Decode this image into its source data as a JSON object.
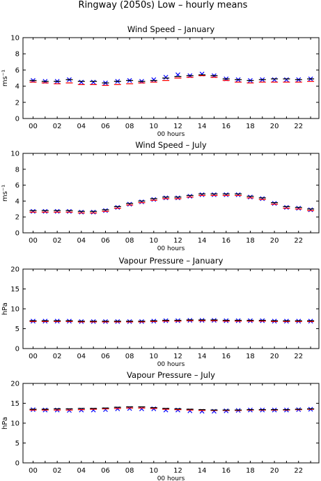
{
  "figure": {
    "title": "Ringway (2050s) Low – hourly means"
  },
  "chart_data": [
    {
      "type": "scatter",
      "title": "Wind Speed – January",
      "xlabel": "00 hours",
      "ylabel": "ms⁻¹",
      "ylim": [
        0,
        10
      ],
      "yticks": [
        0,
        2,
        4,
        6,
        8,
        10
      ],
      "xticks": [
        "00",
        "02",
        "04",
        "06",
        "08",
        "10",
        "12",
        "14",
        "16",
        "18",
        "20",
        "22"
      ],
      "x": [
        0,
        1,
        2,
        3,
        4,
        5,
        6,
        7,
        8,
        9,
        10,
        11,
        12,
        13,
        14,
        15,
        16,
        17,
        18,
        19,
        20,
        21,
        22,
        23
      ],
      "series": [
        {
          "name": "",
          "color": "#0000ff",
          "marker": "x",
          "values": [
            4.7,
            4.6,
            4.6,
            4.8,
            4.5,
            4.5,
            4.4,
            4.6,
            4.7,
            4.6,
            4.8,
            5.1,
            5.4,
            5.3,
            5.5,
            5.3,
            4.9,
            4.8,
            4.7,
            4.8,
            4.8,
            4.8,
            4.8,
            4.9
          ]
        },
        {
          "name": "",
          "color": "#ff0000",
          "marker": "line",
          "values": [
            4.5,
            4.4,
            4.3,
            4.4,
            4.2,
            4.2,
            4.1,
            4.2,
            4.3,
            4.4,
            4.5,
            4.7,
            5.0,
            5.1,
            5.3,
            5.1,
            4.7,
            4.5,
            4.4,
            4.5,
            4.5,
            4.5,
            4.5,
            4.6
          ]
        },
        {
          "name": "",
          "color": "#000000",
          "marker": "line",
          "values": [
            4.7,
            4.6,
            4.6,
            4.8,
            4.6,
            4.6,
            4.4,
            4.6,
            4.7,
            4.6,
            4.7,
            5.0,
            5.2,
            5.3,
            5.4,
            5.3,
            4.9,
            4.8,
            4.7,
            4.8,
            4.9,
            4.9,
            4.8,
            4.9
          ]
        }
      ]
    },
    {
      "type": "scatter",
      "title": "Wind Speed – July",
      "xlabel": "00 hours",
      "ylabel": "ms⁻¹",
      "ylim": [
        0,
        10
      ],
      "yticks": [
        0,
        2,
        4,
        6,
        8,
        10
      ],
      "xticks": [
        "00",
        "02",
        "04",
        "06",
        "08",
        "10",
        "12",
        "14",
        "16",
        "18",
        "20",
        "22"
      ],
      "x": [
        0,
        1,
        2,
        3,
        4,
        5,
        6,
        7,
        8,
        9,
        10,
        11,
        12,
        13,
        14,
        15,
        16,
        17,
        18,
        19,
        20,
        21,
        22,
        23
      ],
      "series": [
        {
          "name": "",
          "color": "#0000ff",
          "marker": "x",
          "values": [
            2.7,
            2.7,
            2.7,
            2.7,
            2.6,
            2.6,
            2.8,
            3.2,
            3.6,
            3.9,
            4.2,
            4.4,
            4.4,
            4.6,
            4.8,
            4.8,
            4.8,
            4.8,
            4.5,
            4.3,
            3.7,
            3.2,
            3.1,
            2.9
          ]
        },
        {
          "name": "",
          "color": "#ff0000",
          "marker": "line",
          "values": [
            2.6,
            2.6,
            2.6,
            2.6,
            2.5,
            2.5,
            2.7,
            3.1,
            3.5,
            3.8,
            4.1,
            4.3,
            4.3,
            4.5,
            4.7,
            4.7,
            4.7,
            4.7,
            4.4,
            4.2,
            3.6,
            3.1,
            3.0,
            2.8
          ]
        },
        {
          "name": "",
          "color": "#000000",
          "marker": "line",
          "values": [
            2.8,
            2.8,
            2.8,
            2.8,
            2.7,
            2.7,
            2.9,
            3.3,
            3.7,
            4.0,
            4.3,
            4.5,
            4.5,
            4.7,
            4.9,
            4.9,
            4.9,
            4.9,
            4.6,
            4.4,
            3.8,
            3.3,
            3.2,
            3.0
          ]
        }
      ]
    },
    {
      "type": "scatter",
      "title": "Vapour Pressure – January",
      "xlabel": "00 hours",
      "ylabel": "hPa",
      "ylim": [
        0,
        20
      ],
      "yticks": [
        0,
        5,
        10,
        15,
        20
      ],
      "xticks": [
        "00",
        "02",
        "04",
        "06",
        "08",
        "10",
        "12",
        "14",
        "16",
        "18",
        "20",
        "22"
      ],
      "x": [
        0,
        1,
        2,
        3,
        4,
        5,
        6,
        7,
        8,
        9,
        10,
        11,
        12,
        13,
        14,
        15,
        16,
        17,
        18,
        19,
        20,
        21,
        22,
        23
      ],
      "series": [
        {
          "name": "",
          "color": "#0000ff",
          "marker": "x",
          "values": [
            6.9,
            6.9,
            6.9,
            6.9,
            6.8,
            6.8,
            6.8,
            6.8,
            6.8,
            6.8,
            6.9,
            7.0,
            7.0,
            7.1,
            7.1,
            7.1,
            7.0,
            7.0,
            7.0,
            7.0,
            6.9,
            6.9,
            6.9,
            6.9
          ]
        },
        {
          "name": "",
          "color": "#ff0000",
          "marker": "line",
          "values": [
            6.8,
            6.8,
            6.8,
            6.8,
            6.7,
            6.7,
            6.7,
            6.7,
            6.7,
            6.7,
            6.8,
            6.9,
            6.9,
            7.0,
            7.0,
            7.0,
            6.9,
            6.9,
            6.9,
            6.9,
            6.8,
            6.8,
            6.8,
            6.8
          ]
        },
        {
          "name": "",
          "color": "#000000",
          "marker": "line",
          "values": [
            7.0,
            7.0,
            7.0,
            7.0,
            6.9,
            6.9,
            6.9,
            6.9,
            6.9,
            6.9,
            7.0,
            7.1,
            7.1,
            7.2,
            7.2,
            7.2,
            7.1,
            7.1,
            7.1,
            7.1,
            7.0,
            7.0,
            7.0,
            7.0
          ]
        }
      ]
    },
    {
      "type": "scatter",
      "title": "Vapour Pressure – July",
      "xlabel": "00 hours",
      "ylabel": "hPa",
      "ylim": [
        0,
        20
      ],
      "yticks": [
        0,
        5,
        10,
        15,
        20
      ],
      "xticks": [
        "00",
        "02",
        "04",
        "06",
        "08",
        "10",
        "12",
        "14",
        "16",
        "18",
        "20",
        "22"
      ],
      "x": [
        0,
        1,
        2,
        3,
        4,
        5,
        6,
        7,
        8,
        9,
        10,
        11,
        12,
        13,
        14,
        15,
        16,
        17,
        18,
        19,
        20,
        21,
        22,
        23
      ],
      "series": [
        {
          "name": "",
          "color": "#0000ff",
          "marker": "x",
          "values": [
            13.4,
            13.3,
            13.3,
            13.2,
            13.3,
            13.3,
            13.4,
            13.6,
            13.7,
            13.6,
            13.6,
            13.3,
            13.3,
            13.1,
            13.0,
            13.0,
            13.1,
            13.2,
            13.3,
            13.3,
            13.3,
            13.3,
            13.4,
            13.5
          ]
        },
        {
          "name": "",
          "color": "#ff0000",
          "marker": "line",
          "values": [
            13.3,
            13.3,
            13.3,
            13.3,
            13.4,
            13.5,
            13.6,
            13.7,
            13.8,
            13.8,
            13.7,
            13.5,
            13.4,
            13.3,
            13.2,
            13.2,
            13.2,
            13.2,
            13.3,
            13.3,
            13.3,
            13.3,
            13.4,
            13.5
          ]
        },
        {
          "name": "",
          "color": "#000000",
          "marker": "line",
          "values": [
            13.5,
            13.5,
            13.6,
            13.6,
            13.7,
            13.7,
            13.8,
            14.0,
            14.1,
            14.1,
            13.9,
            13.7,
            13.6,
            13.5,
            13.4,
            13.3,
            13.3,
            13.3,
            13.4,
            13.4,
            13.4,
            13.4,
            13.5,
            13.6
          ]
        }
      ]
    }
  ]
}
